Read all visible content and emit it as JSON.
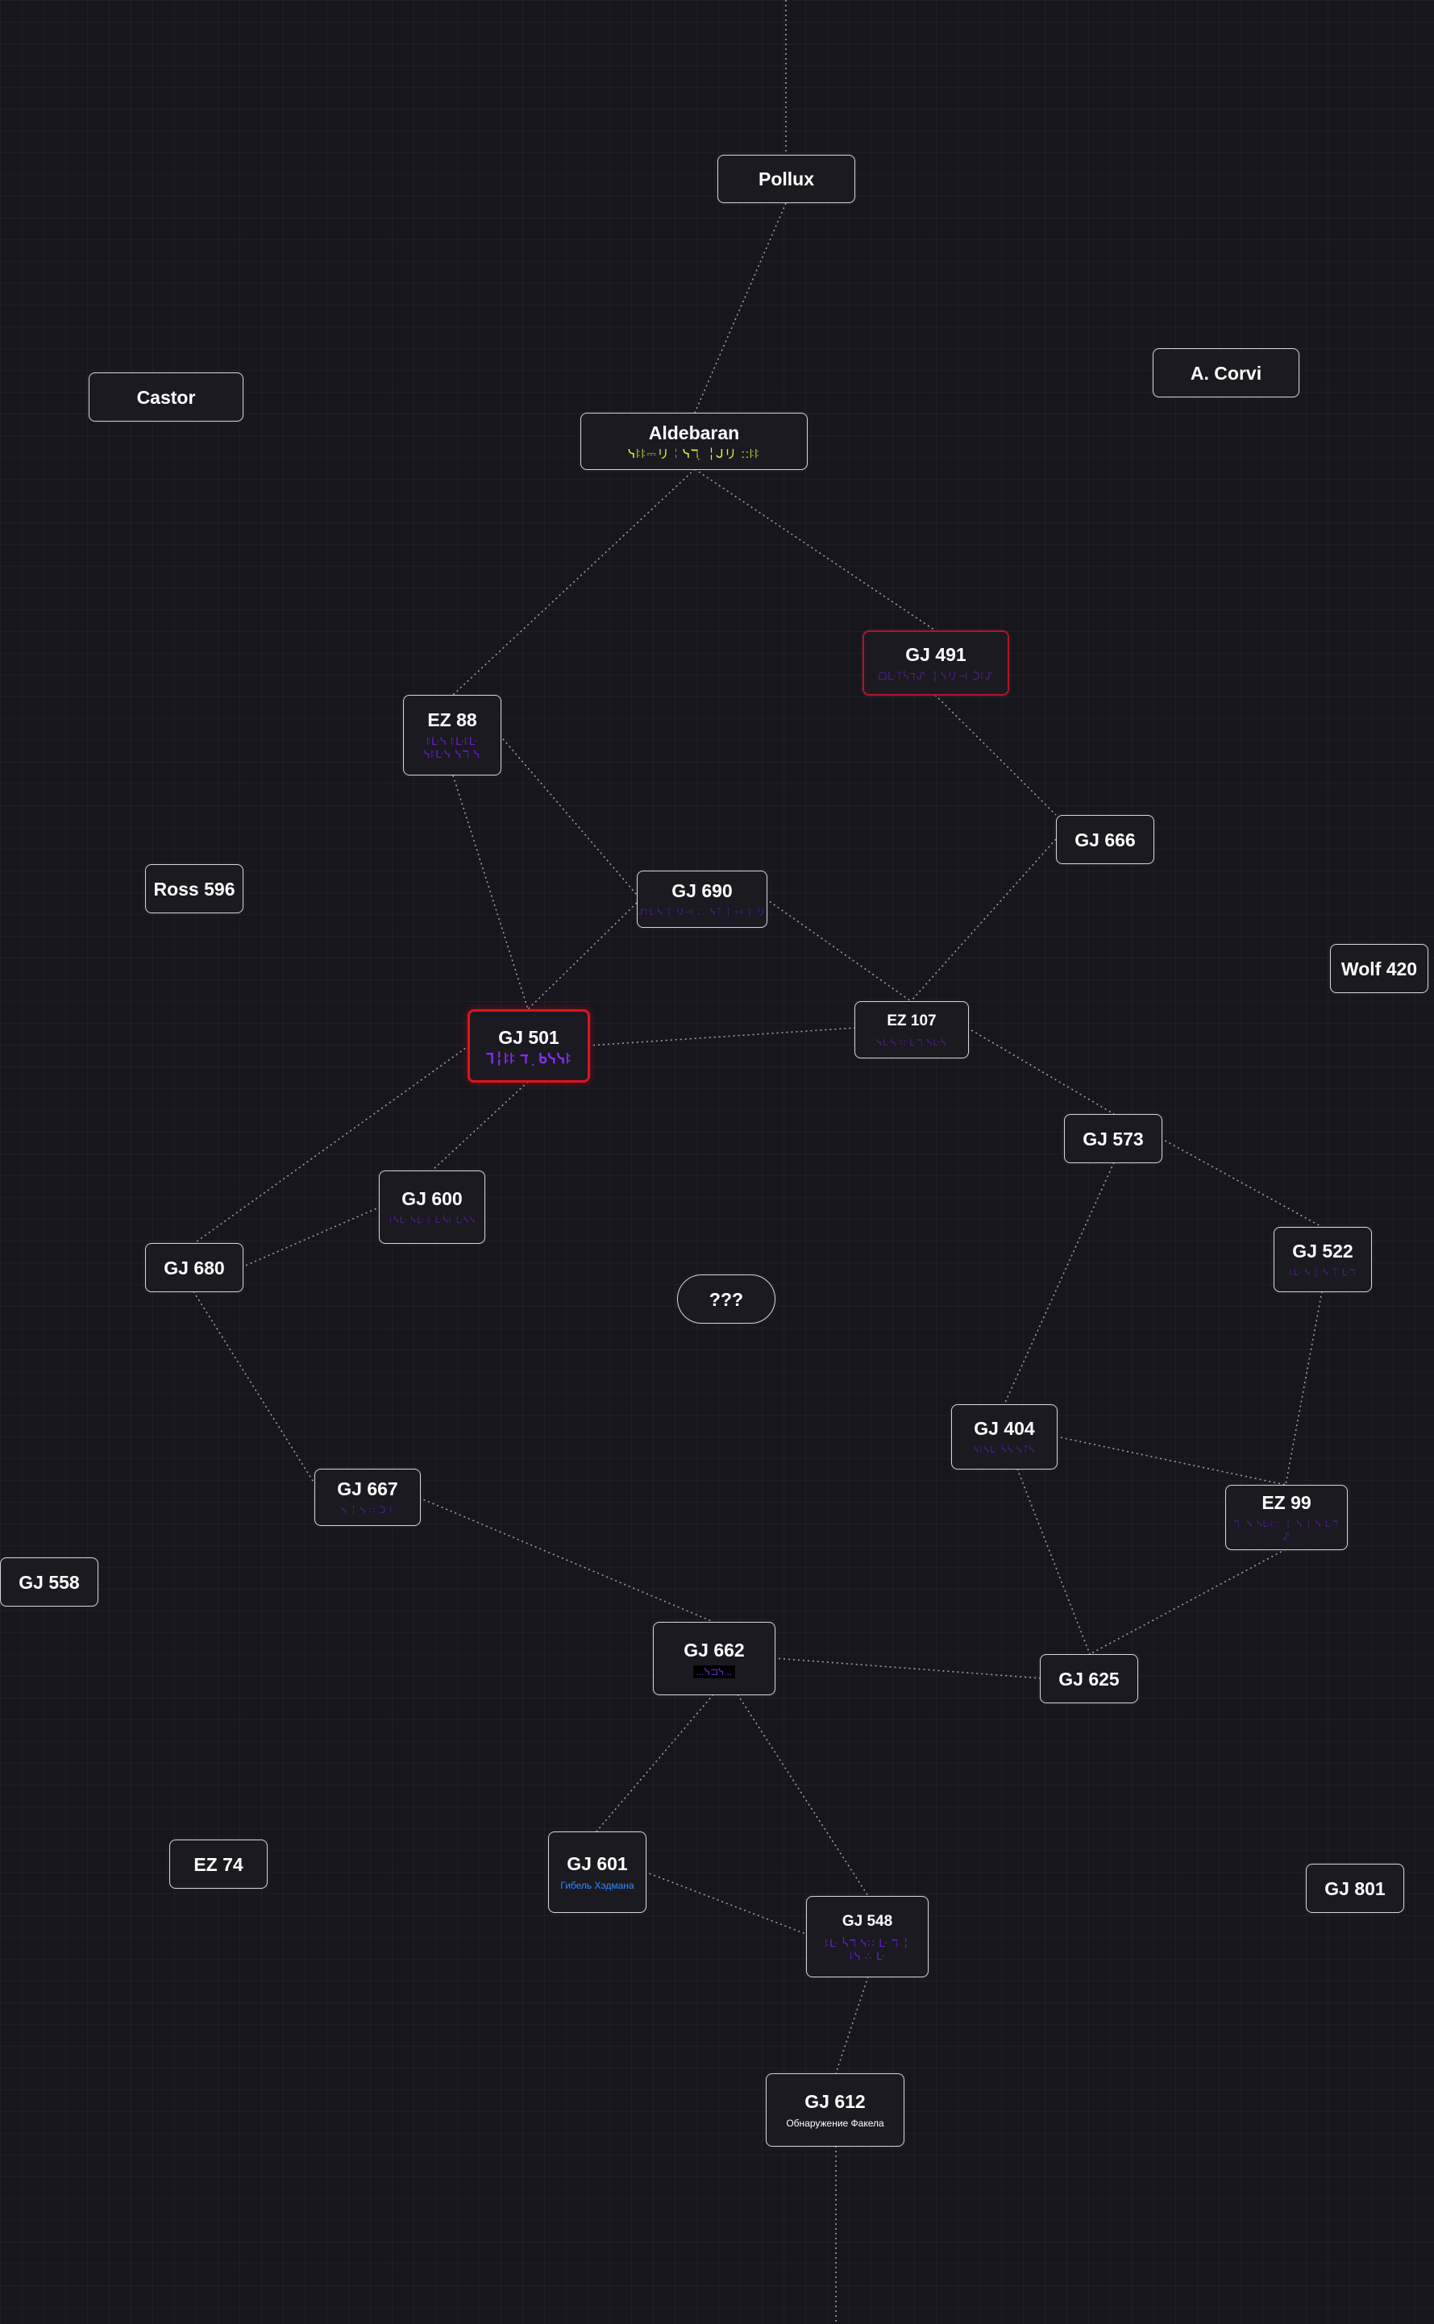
{
  "nodes": {
    "pollux": {
      "name": "Pollux"
    },
    "castor": {
      "name": "Castor"
    },
    "a_corvi": {
      "name": "A. Corvi"
    },
    "aldebaran": {
      "name": "Aldebaran",
      "sub": "ᓭꖎꖎ⎓リ╎ᓭℸ ̣ ╎ᒍリ ::ꖎꖎ"
    },
    "gj491": {
      "name": "GJ 491",
      "sub": "ᗝᒷ⍑ᓵℸᔑ ╎ᓭリ⊣ ᑑꖎᔑ"
    },
    "ez88": {
      "name": "EZ 88",
      "sub": "ꖎᒷᓭ ꖎᒷꖎᒷ ᓭꖎᒷᓭ ᓭℸ ᓭ"
    },
    "ross596": {
      "name": "Ross 596"
    },
    "gj666": {
      "name": "GJ 666"
    },
    "gj690": {
      "name": "GJ 690",
      "sub": "ᔑꖎᒷᓵ ╎ リ⊣ ∴ ᓭ⍑ ╎ ⊣ ╎ リ"
    },
    "wolf420": {
      "name": "Wolf 420"
    },
    "gj501": {
      "name": "GJ 501",
      "sub": "ᒣ╎ꖎꖎ ℸ ̣  ᑲᓭᓭꖎ"
    },
    "ez107": {
      "name": "EZ 107",
      "sub": "ᓭᒷᓵ ∷ ᒷℸ ᓭᒷᓵ"
    },
    "gj573": {
      "name": "GJ 573"
    },
    "gj600": {
      "name": "GJ 600",
      "sub": "ꖌᓭᒷ ᓭᒷ ꖎ ᒷᓵꖎ ᒷᓭᓭ"
    },
    "gj680": {
      "name": "GJ 680"
    },
    "unknown": {
      "name": "???"
    },
    "gj522": {
      "name": "GJ 522",
      "sub": "ꖎᒷ ᓵ ╎ ᓭ ⍑ ᒷℸ"
    },
    "gj404": {
      "name": "GJ 404",
      "sub": "ᓭꖎᓭᒷ ᓵᓵ ᓭ⍑ᓵ"
    },
    "gj667": {
      "name": "GJ 667",
      "sub": "ᓭ ╎ ᓭ ∷ ᑑ ꖎ"
    },
    "ez99": {
      "name": "EZ 99",
      "sub": "ℸ ̣ ᓭ ᓵᒷꖎ∷ ╎ ᓭ ╎ ᓭ ᒷℸ ᔑ"
    },
    "gj558": {
      "name": "GJ 558"
    },
    "gj662": {
      "name": "GJ 662",
      "sub": "...ᓭ⊐ᓭ..."
    },
    "gj625": {
      "name": "GJ 625"
    },
    "ez74": {
      "name": "EZ 74"
    },
    "gj601": {
      "name": "GJ 601",
      "sub": "Гибель Хэдмана"
    },
    "gj801": {
      "name": "GJ 801"
    },
    "gj548": {
      "name": "GJ 548",
      "sub": "ꖎᒷ ᓵℸ ᓭ∷ ᒷ ℸ ╎ ꖎᓭ ∴ ᒷ"
    },
    "gj612": {
      "name": "GJ 612",
      "sub": "Обнаружение Факела"
    }
  }
}
